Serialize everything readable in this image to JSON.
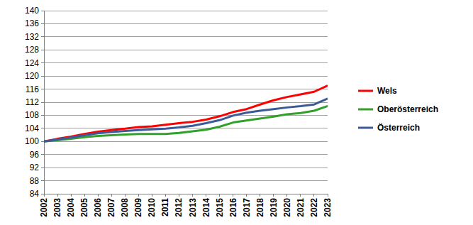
{
  "chart_data": {
    "type": "line",
    "categories": [
      "2002",
      "2003",
      "2004",
      "2005",
      "2006",
      "2007",
      "2008",
      "2009",
      "2010",
      "2011",
      "2012",
      "2013",
      "2014",
      "2015",
      "2016",
      "2017",
      "2018",
      "2019",
      "2020",
      "2021",
      "2022",
      "2023"
    ],
    "series": [
      {
        "name": "Wels",
        "color": "#ff0000",
        "values": [
          100,
          100.8,
          101.5,
          102.3,
          103,
          103.5,
          103.9,
          104.4,
          104.6,
          105.1,
          105.6,
          106,
          106.7,
          107.7,
          109,
          109.9,
          111.3,
          112.6,
          113.6,
          114.4,
          115.2,
          117.1
        ]
      },
      {
        "name": "Oberösterreich",
        "color": "#33a02c",
        "values": [
          100,
          100.4,
          100.8,
          101.3,
          101.7,
          101.9,
          102.1,
          102.3,
          102.3,
          102.3,
          102.6,
          103.1,
          103.6,
          104.5,
          105.8,
          106.4,
          107,
          107.6,
          108.3,
          108.7,
          109.4,
          110.8
        ]
      },
      {
        "name": "Österreich",
        "color": "#3c5a9a",
        "values": [
          100,
          100.6,
          101.2,
          101.9,
          102.5,
          102.9,
          103.2,
          103.5,
          103.7,
          103.9,
          104.3,
          104.8,
          105.6,
          106.5,
          107.9,
          108.8,
          109.4,
          109.9,
          110.4,
          110.8,
          111.3,
          113.1
        ]
      }
    ],
    "ylim": [
      84,
      140
    ],
    "yticks": [
      84,
      88,
      92,
      96,
      100,
      104,
      108,
      112,
      116,
      120,
      124,
      128,
      132,
      136,
      140
    ],
    "grid": true,
    "legend": "right"
  }
}
